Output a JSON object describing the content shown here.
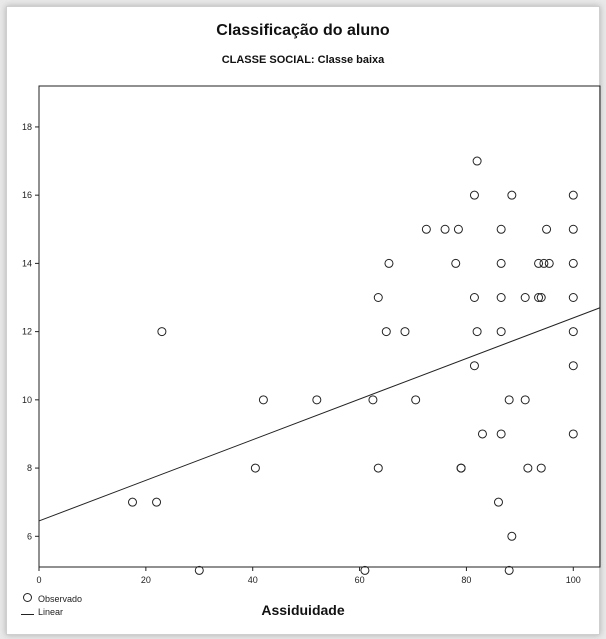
{
  "chart_data": {
    "type": "scatter",
    "title": "Classificação do aluno",
    "subtitle": "CLASSE SOCIAL: Classe baixa",
    "xlabel": "Assiduidade",
    "ylabel": "",
    "xlim": [
      0,
      105
    ],
    "ylim": [
      5.1,
      19.2
    ],
    "xticks": [
      0,
      20,
      40,
      60,
      80,
      100
    ],
    "yticks": [
      6,
      8,
      10,
      12,
      14,
      16,
      18
    ],
    "grid": false,
    "legend_position": "bottom-left",
    "legend": [
      "Observado",
      "Linear"
    ],
    "series": [
      {
        "name": "Observado",
        "points": [
          [
            17.5,
            7
          ],
          [
            22,
            7
          ],
          [
            23,
            12
          ],
          [
            30,
            5
          ],
          [
            40.5,
            8
          ],
          [
            42,
            10
          ],
          [
            52,
            10
          ],
          [
            61,
            5
          ],
          [
            62.5,
            10
          ],
          [
            63.5,
            13
          ],
          [
            63.5,
            8
          ],
          [
            65,
            12
          ],
          [
            65.5,
            14
          ],
          [
            68.5,
            12
          ],
          [
            70.5,
            10
          ],
          [
            72.5,
            15
          ],
          [
            76,
            15
          ],
          [
            78,
            14
          ],
          [
            78.5,
            15
          ],
          [
            79,
            8
          ],
          [
            79,
            8
          ],
          [
            81.5,
            11
          ],
          [
            81.5,
            13
          ],
          [
            81.5,
            16
          ],
          [
            82,
            12
          ],
          [
            82,
            17
          ],
          [
            83,
            9
          ],
          [
            86,
            7
          ],
          [
            86.5,
            14
          ],
          [
            86.5,
            13
          ],
          [
            86.5,
            12
          ],
          [
            86.5,
            9
          ],
          [
            86.5,
            15
          ],
          [
            88,
            10
          ],
          [
            88.5,
            16
          ],
          [
            88.5,
            6
          ],
          [
            88,
            5
          ],
          [
            91,
            13
          ],
          [
            91,
            10
          ],
          [
            91.5,
            8
          ],
          [
            93.5,
            14
          ],
          [
            93.5,
            13
          ],
          [
            94,
            13
          ],
          [
            94,
            8
          ],
          [
            94.5,
            14
          ],
          [
            95,
            15
          ],
          [
            95.5,
            14
          ],
          [
            100,
            16
          ],
          [
            100,
            15
          ],
          [
            100,
            14
          ],
          [
            100,
            13
          ],
          [
            100,
            12
          ],
          [
            100,
            11
          ],
          [
            100,
            9
          ]
        ]
      },
      {
        "name": "Linear",
        "line": [
          [
            0,
            6.45
          ],
          [
            105,
            12.7
          ]
        ]
      }
    ]
  }
}
